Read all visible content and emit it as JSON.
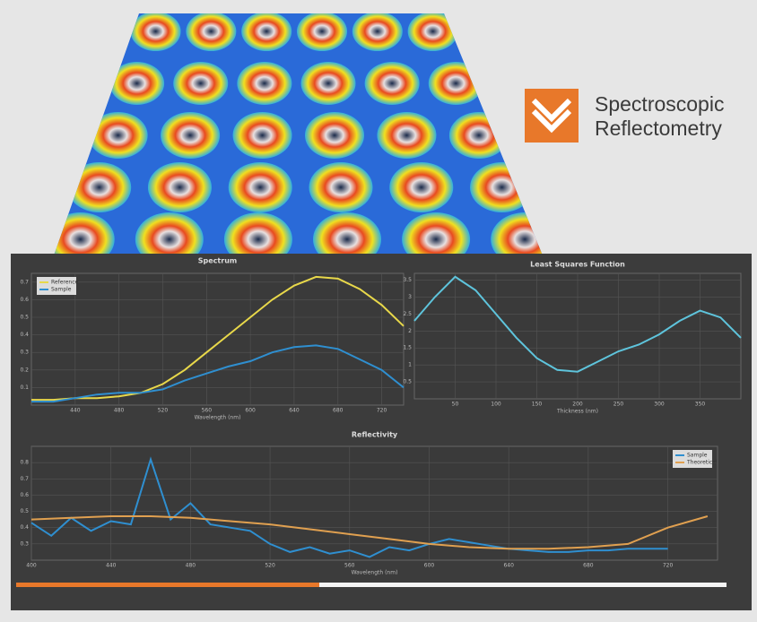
{
  "logo": {
    "lines": [
      "Spectroscopic",
      "Reflectometry"
    ]
  },
  "chart_data": [
    {
      "type": "line",
      "title": "Spectrum",
      "x_label": "Wavelength (nm)",
      "legend": "upper-left",
      "grid": true,
      "xlim": [
        400,
        740
      ],
      "xticks": [
        440,
        480,
        520,
        560,
        600,
        640,
        680,
        720
      ],
      "ylim": [
        0,
        0.75
      ],
      "yticks": [
        0.1,
        0.2,
        0.3,
        0.4,
        0.5,
        0.6,
        0.7
      ],
      "x": [
        400,
        420,
        440,
        460,
        480,
        500,
        520,
        540,
        560,
        580,
        600,
        620,
        640,
        660,
        680,
        700,
        720,
        740
      ],
      "series": [
        {
          "name": "Reference",
          "color": "#e8d84a",
          "values": [
            0.03,
            0.03,
            0.04,
            0.04,
            0.05,
            0.07,
            0.12,
            0.2,
            0.3,
            0.4,
            0.5,
            0.6,
            0.68,
            0.73,
            0.72,
            0.66,
            0.57,
            0.45
          ]
        },
        {
          "name": "Sample",
          "color": "#2f8fd0",
          "values": [
            0.02,
            0.02,
            0.04,
            0.06,
            0.07,
            0.07,
            0.09,
            0.14,
            0.18,
            0.22,
            0.25,
            0.3,
            0.33,
            0.34,
            0.32,
            0.26,
            0.2,
            0.1
          ]
        }
      ]
    },
    {
      "type": "line",
      "title": "Least Squares Function",
      "x_label": "Thickness (nm)",
      "grid": true,
      "xlim": [
        0,
        400
      ],
      "xticks": [
        50,
        100,
        150,
        200,
        250,
        300,
        350
      ],
      "ylim": [
        0,
        3.7
      ],
      "yticks": [
        0.5,
        1,
        1.5,
        2,
        2.5,
        3,
        3.5
      ],
      "x": [
        0,
        25,
        50,
        75,
        100,
        125,
        150,
        175,
        200,
        225,
        250,
        275,
        300,
        325,
        350,
        375,
        400
      ],
      "series": [
        {
          "color": "#5ec4dc",
          "values": [
            2.3,
            3.0,
            3.6,
            3.2,
            2.5,
            1.8,
            1.2,
            0.85,
            0.8,
            1.1,
            1.4,
            1.6,
            1.9,
            2.3,
            2.6,
            2.4,
            1.8
          ]
        }
      ]
    },
    {
      "type": "line",
      "title": "Reflectivity",
      "x_label": "Wavelength (nm)",
      "legend": "upper-right",
      "grid": true,
      "xlim": [
        400,
        745
      ],
      "xticks": [
        400,
        440,
        480,
        520,
        560,
        600,
        640,
        680,
        720
      ],
      "ylim": [
        0.2,
        0.9
      ],
      "yticks": [
        0.3,
        0.4,
        0.5,
        0.6,
        0.7,
        0.8
      ],
      "series": [
        {
          "name": "Sample",
          "color": "#2f8fd0",
          "x": [
            400,
            410,
            420,
            430,
            440,
            450,
            460,
            470,
            480,
            490,
            500,
            510,
            520,
            530,
            540,
            550,
            560,
            570,
            580,
            590,
            600,
            610,
            620,
            630,
            640,
            650,
            660,
            670,
            680,
            690,
            700,
            710,
            720
          ],
          "values": [
            0.43,
            0.35,
            0.46,
            0.38,
            0.44,
            0.42,
            0.82,
            0.45,
            0.55,
            0.42,
            0.4,
            0.38,
            0.3,
            0.25,
            0.28,
            0.24,
            0.26,
            0.22,
            0.28,
            0.26,
            0.3,
            0.33,
            0.31,
            0.29,
            0.27,
            0.26,
            0.25,
            0.25,
            0.26,
            0.26,
            0.27,
            0.27,
            0.27
          ]
        },
        {
          "name": "Theoretical",
          "color": "#e0a050",
          "x": [
            400,
            420,
            440,
            460,
            480,
            500,
            520,
            540,
            560,
            580,
            600,
            620,
            640,
            660,
            680,
            700,
            720,
            740
          ],
          "values": [
            0.45,
            0.46,
            0.47,
            0.47,
            0.46,
            0.44,
            0.42,
            0.39,
            0.36,
            0.33,
            0.3,
            0.28,
            0.27,
            0.27,
            0.28,
            0.3,
            0.4,
            0.47
          ]
        }
      ]
    }
  ]
}
